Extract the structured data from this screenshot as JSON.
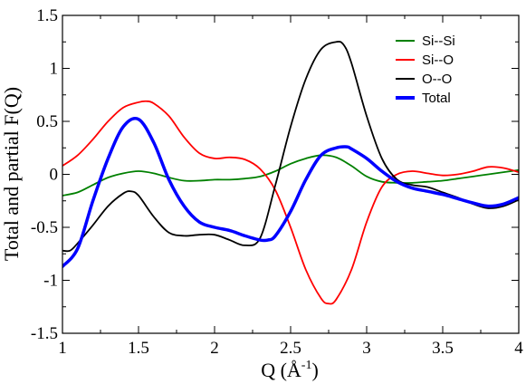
{
  "chart_data": {
    "type": "line",
    "xlabel": "Q (Å",
    "xlabel_sup": "-1",
    "xlabel_end": ")",
    "ylabel": "Total and partial F(Q)",
    "xlim": [
      1,
      4
    ],
    "ylim": [
      -1.5,
      1.5
    ],
    "x_ticks": [
      1,
      1.5,
      2,
      2.5,
      3,
      3.5,
      4
    ],
    "x_tick_labels": [
      "1",
      "1.5",
      "2",
      "2.5",
      "3",
      "3.5",
      "4"
    ],
    "y_ticks": [
      -1.5,
      -1,
      -0.5,
      0,
      0.5,
      1,
      1.5
    ],
    "y_tick_labels": [
      "-1.5",
      "-1",
      "-0.5",
      "0",
      "0.5",
      "1",
      "1.5"
    ],
    "grid": false,
    "legend_position": "top-right",
    "series": [
      {
        "name": "Si--Si",
        "color": "#008000",
        "x": [
          1.0,
          1.1,
          1.2,
          1.3,
          1.4,
          1.5,
          1.6,
          1.7,
          1.8,
          1.9,
          2.0,
          2.1,
          2.2,
          2.3,
          2.4,
          2.5,
          2.6,
          2.7,
          2.8,
          2.9,
          3.0,
          3.1,
          3.2,
          3.3,
          3.4,
          3.5,
          3.6,
          3.7,
          3.8,
          3.9,
          4.0
        ],
        "y": [
          -0.2,
          -0.17,
          -0.1,
          -0.03,
          0.01,
          0.03,
          0.01,
          -0.03,
          -0.06,
          -0.06,
          -0.05,
          -0.05,
          -0.04,
          -0.02,
          0.03,
          0.1,
          0.15,
          0.18,
          0.16,
          0.08,
          -0.02,
          -0.07,
          -0.08,
          -0.08,
          -0.07,
          -0.06,
          -0.04,
          -0.02,
          0.0,
          0.02,
          0.04
        ]
      },
      {
        "name": "Si--O",
        "color": "#ff0000",
        "x": [
          1.0,
          1.1,
          1.2,
          1.3,
          1.4,
          1.5,
          1.55,
          1.6,
          1.7,
          1.8,
          1.9,
          2.0,
          2.1,
          2.2,
          2.3,
          2.4,
          2.5,
          2.6,
          2.7,
          2.75,
          2.8,
          2.9,
          3.0,
          3.1,
          3.2,
          3.3,
          3.4,
          3.5,
          3.6,
          3.7,
          3.8,
          3.9,
          4.0
        ],
        "y": [
          0.08,
          0.18,
          0.33,
          0.5,
          0.63,
          0.68,
          0.69,
          0.67,
          0.55,
          0.35,
          0.2,
          0.15,
          0.16,
          0.14,
          0.05,
          -0.15,
          -0.5,
          -0.9,
          -1.17,
          -1.22,
          -1.18,
          -0.9,
          -0.45,
          -0.12,
          0.0,
          0.03,
          0.01,
          -0.01,
          0.0,
          0.03,
          0.07,
          0.06,
          0.02
        ]
      },
      {
        "name": "O--O",
        "color": "#000000",
        "x": [
          1.0,
          1.05,
          1.1,
          1.2,
          1.3,
          1.4,
          1.45,
          1.5,
          1.6,
          1.7,
          1.8,
          1.9,
          2.0,
          2.1,
          2.2,
          2.3,
          2.4,
          2.5,
          2.6,
          2.7,
          2.8,
          2.85,
          2.9,
          3.0,
          3.1,
          3.2,
          3.3,
          3.4,
          3.5,
          3.6,
          3.7,
          3.8,
          3.9,
          4.0
        ],
        "y": [
          -0.72,
          -0.72,
          -0.65,
          -0.48,
          -0.3,
          -0.18,
          -0.16,
          -0.2,
          -0.4,
          -0.55,
          -0.58,
          -0.57,
          -0.57,
          -0.62,
          -0.67,
          -0.6,
          -0.1,
          0.45,
          0.9,
          1.18,
          1.25,
          1.22,
          1.05,
          0.55,
          0.15,
          -0.05,
          -0.1,
          -0.12,
          -0.17,
          -0.22,
          -0.28,
          -0.32,
          -0.3,
          -0.24
        ]
      },
      {
        "name": "Total",
        "color": "#0000ff",
        "x": [
          1.0,
          1.1,
          1.2,
          1.3,
          1.4,
          1.5,
          1.6,
          1.7,
          1.8,
          1.9,
          2.0,
          2.1,
          2.2,
          2.3,
          2.35,
          2.4,
          2.5,
          2.6,
          2.7,
          2.8,
          2.87,
          2.9,
          3.0,
          3.1,
          3.2,
          3.3,
          3.4,
          3.5,
          3.6,
          3.7,
          3.8,
          3.9,
          4.0
        ],
        "y": [
          -0.87,
          -0.7,
          -0.25,
          0.15,
          0.45,
          0.52,
          0.3,
          -0.05,
          -0.3,
          -0.45,
          -0.5,
          -0.53,
          -0.58,
          -0.62,
          -0.62,
          -0.58,
          -0.35,
          -0.05,
          0.18,
          0.25,
          0.26,
          0.24,
          0.15,
          0.03,
          -0.07,
          -0.13,
          -0.16,
          -0.19,
          -0.23,
          -0.27,
          -0.3,
          -0.28,
          -0.22
        ]
      }
    ]
  }
}
